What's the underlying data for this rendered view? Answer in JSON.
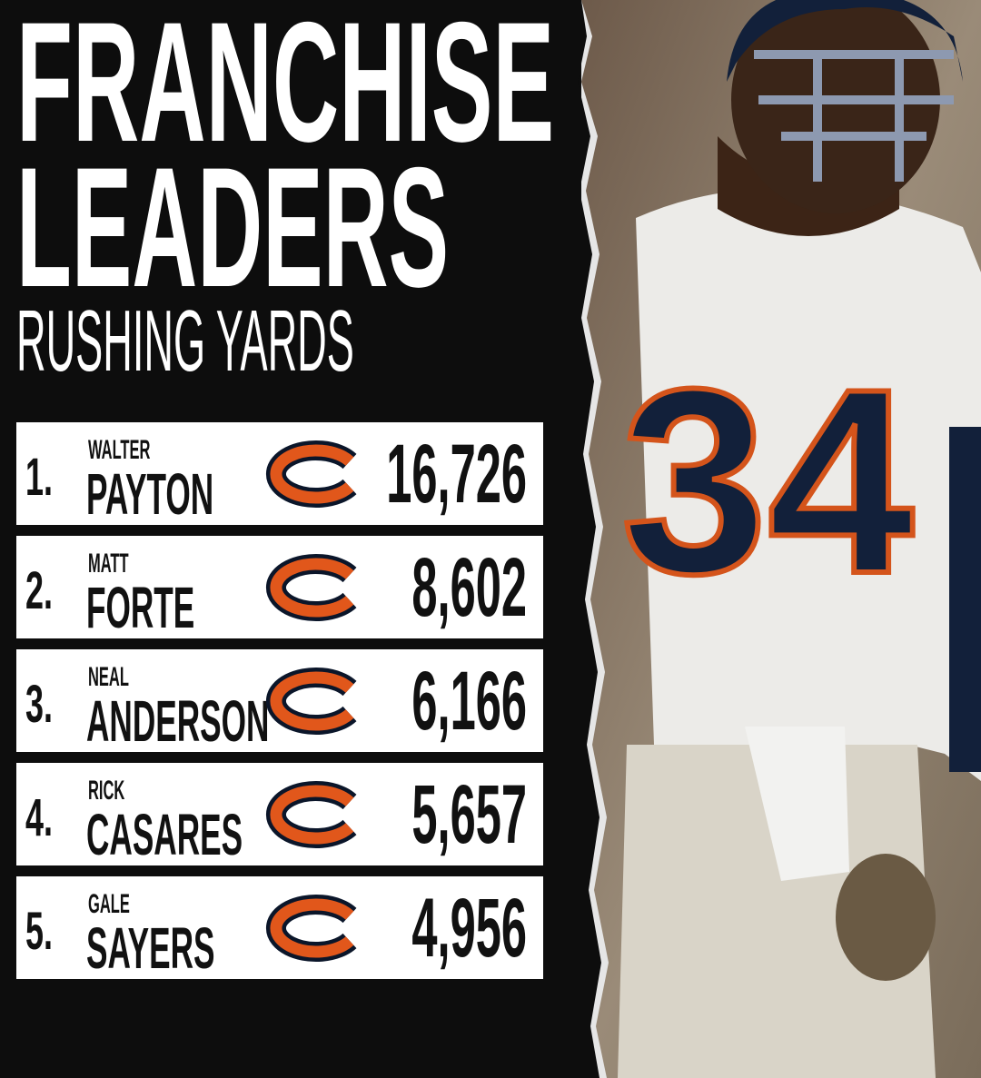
{
  "header": {
    "title_lines": [
      "FRANCHISE",
      "LEADERS"
    ],
    "subtitle": "RUSHING YARDS"
  },
  "leaders": [
    {
      "rank": "1.",
      "first_name": "WALTER",
      "last_name": "PAYTON",
      "yards": "16,726"
    },
    {
      "rank": "2.",
      "first_name": "MATT",
      "last_name": "FORTE",
      "yards": "8,602"
    },
    {
      "rank": "3.",
      "first_name": "NEAL",
      "last_name": "ANDERSON",
      "yards": "6,166"
    },
    {
      "rank": "4.",
      "first_name": "RICK",
      "last_name": "CASARES",
      "yards": "5,657"
    },
    {
      "rank": "5.",
      "first_name": "GALE",
      "last_name": "SAYERS",
      "yards": "4,956"
    }
  ],
  "photo": {
    "jersey_number": "34"
  }
}
